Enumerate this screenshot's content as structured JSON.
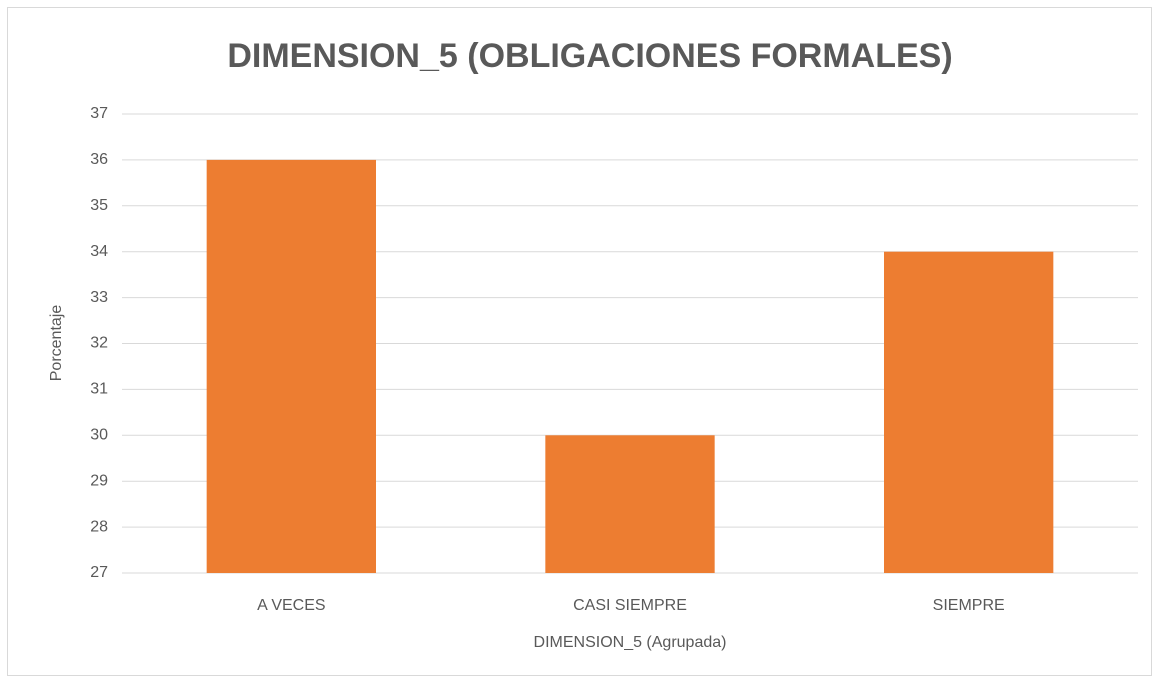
{
  "chart_data": {
    "type": "bar",
    "title": "DIMENSION_5 (OBLIGACIONES FORMALES)",
    "x_label": "DIMENSION_5 (Agrupada)",
    "y_label": "Porcentaje",
    "categories": [
      "A VECES",
      "CASI SIEMPRE",
      "SIEMPRE"
    ],
    "values": [
      36,
      30,
      34
    ],
    "color": "#ed7d31",
    "ylim": [
      27,
      37
    ],
    "yticks": [
      27,
      28,
      29,
      30,
      31,
      32,
      33,
      34,
      35,
      36,
      37
    ],
    "grid": true
  }
}
